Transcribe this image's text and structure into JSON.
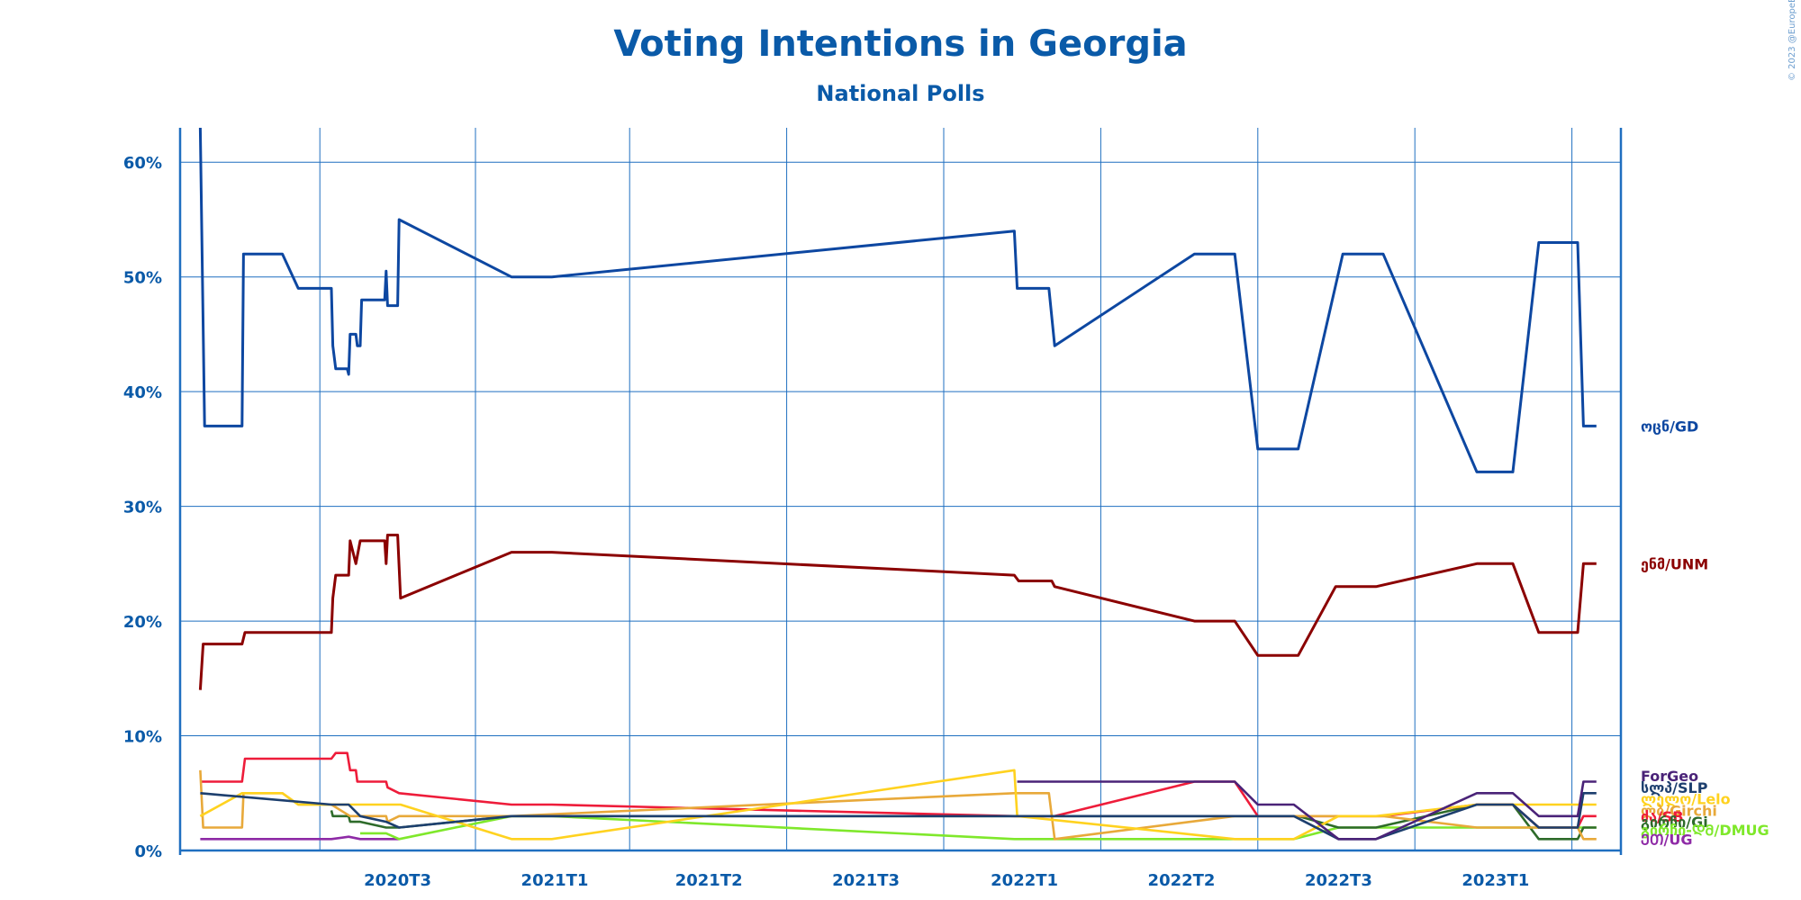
{
  "chart_data": {
    "type": "line",
    "title": "Voting Intentions in Georgia",
    "subtitle": "National Polls",
    "credit": "© 2023 @EuropeElects",
    "xlabel": "",
    "ylabel": "",
    "ylim": [
      0,
      63
    ],
    "xlim": [
      0,
      100
    ],
    "x_ticks": [
      {
        "label": "2020T3",
        "x": 15.1
      },
      {
        "label": "2021T1",
        "x": 26.0
      },
      {
        "label": "2021T2",
        "x": 36.7
      },
      {
        "label": "2021T3",
        "x": 47.6
      },
      {
        "label": "2022T1",
        "x": 58.6
      },
      {
        "label": "2022T2",
        "x": 69.5
      },
      {
        "label": "2022T3",
        "x": 80.4
      },
      {
        "label": "2023T1",
        "x": 91.3
      }
    ],
    "x_gridlines": [
      9.7,
      20.5,
      31.2,
      42.1,
      53.0,
      63.9,
      74.8,
      85.7,
      96.6
    ],
    "y_ticks": [
      0,
      10,
      20,
      30,
      40,
      50,
      60
    ],
    "y_tick_labels": [
      "0%",
      "10%",
      "20%",
      "30%",
      "40%",
      "50%",
      "60%"
    ],
    "grid": true,
    "legend": "right",
    "series": [
      {
        "name": "ოცნ/GD",
        "color": "#0d47a1",
        "label_y": 37,
        "points": [
          [
            1.4,
            63
          ],
          [
            1.7,
            37
          ],
          [
            4.3,
            37
          ],
          [
            4.4,
            52
          ],
          [
            7.1,
            52
          ],
          [
            8.2,
            49
          ],
          [
            10.5,
            49
          ],
          [
            10.6,
            44
          ],
          [
            10.8,
            42
          ],
          [
            11.6,
            42
          ],
          [
            11.7,
            41.5
          ],
          [
            11.8,
            45
          ],
          [
            12.2,
            45
          ],
          [
            12.3,
            44
          ],
          [
            12.5,
            44
          ],
          [
            12.6,
            48
          ],
          [
            14.2,
            48
          ],
          [
            14.3,
            50.5
          ],
          [
            14.4,
            47.5
          ],
          [
            15.1,
            47.5
          ],
          [
            15.2,
            55
          ],
          [
            23.0,
            50
          ],
          [
            25.8,
            50
          ],
          [
            57.9,
            54
          ],
          [
            58.1,
            49
          ],
          [
            60.3,
            49
          ],
          [
            60.7,
            44
          ],
          [
            70.4,
            52
          ],
          [
            73.2,
            52
          ],
          [
            74.8,
            35
          ],
          [
            77.6,
            35
          ],
          [
            80.7,
            52
          ],
          [
            83.5,
            52
          ],
          [
            90.0,
            33
          ],
          [
            92.5,
            33
          ],
          [
            94.3,
            53
          ],
          [
            97.0,
            53
          ],
          [
            97.4,
            37
          ],
          [
            98.3,
            37
          ]
        ]
      },
      {
        "name": "ენმ/UNM",
        "color": "#8b0000",
        "label_y": 25,
        "points": [
          [
            1.4,
            14
          ],
          [
            1.6,
            18
          ],
          [
            4.3,
            18
          ],
          [
            4.5,
            19
          ],
          [
            10.5,
            19
          ],
          [
            10.6,
            22
          ],
          [
            10.8,
            24
          ],
          [
            11.7,
            24
          ],
          [
            11.8,
            27
          ],
          [
            12.2,
            25
          ],
          [
            12.5,
            27
          ],
          [
            14.2,
            27
          ],
          [
            14.3,
            25
          ],
          [
            14.4,
            27.5
          ],
          [
            15.1,
            27.5
          ],
          [
            15.3,
            22
          ],
          [
            23.0,
            26
          ],
          [
            25.8,
            26
          ],
          [
            57.9,
            24
          ],
          [
            58.2,
            23.5
          ],
          [
            60.5,
            23.5
          ],
          [
            60.7,
            23
          ],
          [
            70.4,
            20
          ],
          [
            73.2,
            20
          ],
          [
            74.8,
            17
          ],
          [
            77.6,
            17
          ],
          [
            80.2,
            23
          ],
          [
            83.0,
            23
          ],
          [
            90.0,
            25
          ],
          [
            92.5,
            25
          ],
          [
            94.3,
            19
          ],
          [
            97.0,
            19
          ],
          [
            97.4,
            25
          ],
          [
            98.3,
            25
          ]
        ]
      },
      {
        "name": "ForGeo",
        "color": "#4a2378",
        "label_y": 6.5,
        "points": [
          [
            58.1,
            6
          ],
          [
            73.2,
            6
          ],
          [
            74.8,
            4
          ],
          [
            77.3,
            4
          ],
          [
            80.4,
            1
          ],
          [
            83.0,
            1
          ],
          [
            90.0,
            5
          ],
          [
            92.5,
            5
          ],
          [
            94.3,
            3
          ],
          [
            97.0,
            3
          ],
          [
            97.4,
            6
          ],
          [
            98.3,
            6
          ]
        ]
      },
      {
        "name": "სლპ/SLP",
        "color": "#1d3f6e",
        "label_y": 5.5,
        "points": [
          [
            1.4,
            5
          ],
          [
            10.5,
            4
          ],
          [
            11.7,
            4
          ],
          [
            12.5,
            3
          ],
          [
            14.3,
            2.5
          ],
          [
            15.2,
            2
          ],
          [
            23.0,
            3
          ],
          [
            25.8,
            3
          ],
          [
            57.9,
            3
          ],
          [
            73.2,
            3
          ],
          [
            74.8,
            3
          ],
          [
            77.3,
            3
          ],
          [
            80.4,
            1
          ],
          [
            83.0,
            1
          ],
          [
            90.0,
            4
          ],
          [
            92.5,
            4
          ],
          [
            94.3,
            2
          ],
          [
            97.0,
            2
          ],
          [
            97.4,
            5
          ],
          [
            98.3,
            5
          ]
        ]
      },
      {
        "name": "ლელო/Lelo",
        "color": "#ffd21f",
        "label_y": 4.5,
        "points": [
          [
            1.4,
            3
          ],
          [
            4.3,
            5
          ],
          [
            7.1,
            5
          ],
          [
            8.2,
            4
          ],
          [
            10.5,
            4
          ],
          [
            12.5,
            4
          ],
          [
            15.3,
            4
          ],
          [
            23.0,
            1
          ],
          [
            25.8,
            1
          ],
          [
            57.9,
            7
          ],
          [
            58.1,
            3
          ],
          [
            73.2,
            1
          ],
          [
            77.3,
            1
          ],
          [
            80.4,
            3
          ],
          [
            83.0,
            3
          ],
          [
            90.0,
            4
          ],
          [
            92.5,
            4
          ],
          [
            94.3,
            4
          ],
          [
            97.4,
            4
          ],
          [
            98.3,
            4
          ]
        ]
      },
      {
        "name": "ლბ/Girchi",
        "color": "#e8a93a",
        "label_y": 3.5,
        "points": [
          [
            1.4,
            7
          ],
          [
            1.6,
            2
          ],
          [
            4.3,
            2
          ],
          [
            4.4,
            5
          ],
          [
            7.1,
            5
          ],
          [
            8.2,
            4
          ],
          [
            10.5,
            4
          ],
          [
            11.8,
            3
          ],
          [
            12.5,
            3
          ],
          [
            13.5,
            3
          ],
          [
            14.3,
            3
          ],
          [
            14.4,
            2.5
          ],
          [
            15.2,
            3
          ],
          [
            23.0,
            3
          ],
          [
            57.9,
            5
          ],
          [
            60.3,
            5
          ],
          [
            60.7,
            1
          ],
          [
            73.2,
            3
          ],
          [
            77.6,
            3
          ],
          [
            80.4,
            3
          ],
          [
            83.5,
            3
          ],
          [
            90.0,
            2
          ],
          [
            92.5,
            2
          ],
          [
            94.3,
            2
          ],
          [
            97.0,
            2
          ],
          [
            97.4,
            1
          ],
          [
            98.3,
            1
          ]
        ]
      },
      {
        "name": "ძა/SB",
        "color": "#ee1c3a",
        "label_y": 3.0,
        "points": [
          [
            1.4,
            6
          ],
          [
            4.3,
            6
          ],
          [
            4.5,
            8
          ],
          [
            10.5,
            8
          ],
          [
            10.8,
            8.5
          ],
          [
            11.6,
            8.5
          ],
          [
            11.8,
            7
          ],
          [
            12.2,
            7
          ],
          [
            12.3,
            6
          ],
          [
            14.3,
            6
          ],
          [
            14.4,
            5.5
          ],
          [
            15.2,
            5
          ],
          [
            23.0,
            4
          ],
          [
            25.8,
            4
          ],
          [
            57.9,
            3
          ],
          [
            60.7,
            3
          ],
          [
            70.4,
            6
          ],
          [
            73.2,
            6
          ],
          [
            74.8,
            3
          ],
          [
            77.6,
            3
          ],
          [
            80.4,
            3
          ],
          [
            83.5,
            3
          ],
          [
            90.0,
            4
          ],
          [
            92.5,
            4
          ],
          [
            94.3,
            2
          ],
          [
            97.0,
            2
          ],
          [
            97.4,
            3
          ],
          [
            98.3,
            3
          ]
        ]
      },
      {
        "name": "გირჩი/Gi",
        "color": "#2e6b2a",
        "label_y": 2.5,
        "points": [
          [
            10.5,
            3.5
          ],
          [
            10.6,
            3
          ],
          [
            11.7,
            3
          ],
          [
            11.8,
            2.5
          ],
          [
            12.5,
            2.5
          ],
          [
            14.3,
            2
          ],
          [
            15.2,
            2
          ],
          [
            23.0,
            3
          ],
          [
            57.9,
            3
          ],
          [
            73.2,
            3
          ],
          [
            74.8,
            3
          ],
          [
            77.6,
            3
          ],
          [
            80.4,
            2
          ],
          [
            83.0,
            2
          ],
          [
            90.0,
            4
          ],
          [
            92.5,
            4
          ],
          [
            94.3,
            1
          ],
          [
            97.0,
            1
          ],
          [
            97.4,
            2
          ],
          [
            98.3,
            2
          ]
        ]
      },
      {
        "name": "გირჩი-ᲓᲛ/DMUG",
        "color": "#7fe82b",
        "label_y": 1.8,
        "points": [
          [
            12.5,
            1.5
          ],
          [
            14.3,
            1.5
          ],
          [
            15.2,
            1
          ],
          [
            23.0,
            3
          ],
          [
            25.8,
            3
          ],
          [
            57.9,
            1
          ],
          [
            60.7,
            1
          ],
          [
            73.2,
            1
          ],
          [
            77.3,
            1
          ],
          [
            80.4,
            2
          ],
          [
            83.0,
            2
          ],
          [
            90.0,
            2
          ],
          [
            92.5,
            2
          ],
          [
            94.3,
            2
          ],
          [
            97.4,
            2
          ],
          [
            98.3,
            2
          ]
        ]
      },
      {
        "name": "ᲔᲗ/UG",
        "color": "#8e2aa6",
        "label_y": 1.0,
        "points": [
          [
            1.4,
            1
          ],
          [
            10.5,
            1
          ],
          [
            11.7,
            1.2
          ],
          [
            12.5,
            1
          ],
          [
            15.2,
            1
          ]
        ]
      }
    ]
  }
}
